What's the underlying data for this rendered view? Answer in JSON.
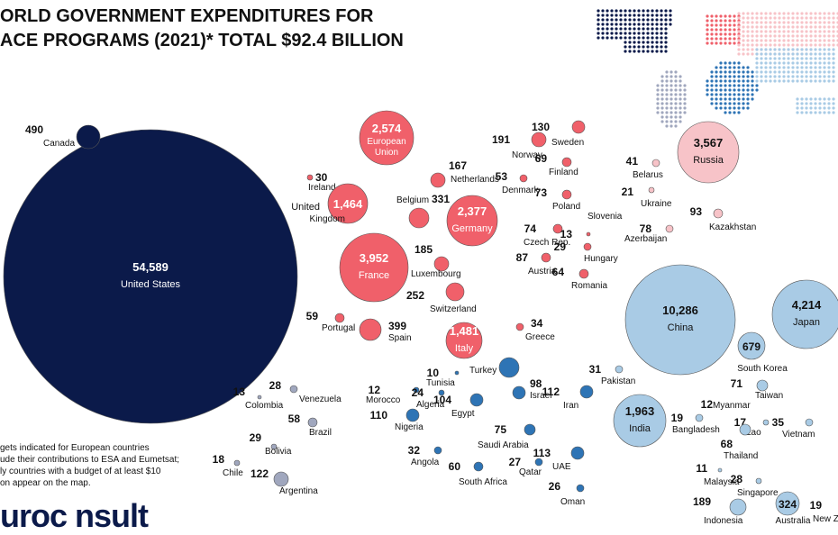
{
  "title_line1": "ORLD GOVERNMENT EXPENDITURES FOR",
  "title_line2": "ACE PROGRAMS (2021)* TOTAL $92.4 BILLION",
  "notes": [
    "gets indicated for European countries",
    "ude their contributions to ESA and Eumetsat;",
    "ly countries with a budget of at least  $10",
    "on appear on the map."
  ],
  "logo_text": "uroc nsult",
  "colors": {
    "americas": "#0b1a4a",
    "americas_small": "#a0a7be",
    "europe": "#f0606a",
    "russia": "#f7c3c8",
    "africa_me": "#2e74b5",
    "asia": "#a9cbe5"
  },
  "chart_data": {
    "type": "bubble",
    "title": "ORLD GOVERNMENT EXPENDITURES FOR ACE PROGRAMS (2021)* TOTAL $92.4 BILLION",
    "unit": "$M",
    "points": [
      {
        "name": "United States",
        "value": "54,589",
        "region": "americas"
      },
      {
        "name": "Canada",
        "value": "490",
        "region": "americas"
      },
      {
        "name": "Colombia",
        "value": "13",
        "region": "americas_small"
      },
      {
        "name": "Venezuela",
        "value": "28",
        "region": "americas_small"
      },
      {
        "name": "Brazil",
        "value": "58",
        "region": "americas_small"
      },
      {
        "name": "Bolivia",
        "value": "29",
        "region": "americas_small"
      },
      {
        "name": "Chile",
        "value": "18",
        "region": "americas_small"
      },
      {
        "name": "Argentina",
        "value": "122",
        "region": "americas_small"
      },
      {
        "name": "European Union",
        "value": "2,574",
        "region": "europe"
      },
      {
        "name": "Ireland",
        "value": "30",
        "region": "europe"
      },
      {
        "name": "United Kingdom",
        "value": "1,464",
        "region": "europe"
      },
      {
        "name": "Netherlands",
        "value": "167",
        "region": "europe"
      },
      {
        "name": "Belgium",
        "value": "331",
        "region": "europe"
      },
      {
        "name": "Germany",
        "value": "2,377",
        "region": "europe"
      },
      {
        "name": "France",
        "value": "3,952",
        "region": "europe"
      },
      {
        "name": "Luxembourg",
        "value": "185",
        "region": "europe"
      },
      {
        "name": "Switzerland",
        "value": "252",
        "region": "europe"
      },
      {
        "name": "Portugal",
        "value": "59",
        "region": "europe"
      },
      {
        "name": "Spain",
        "value": "399",
        "region": "europe"
      },
      {
        "name": "Italy",
        "value": "1,481",
        "region": "europe"
      },
      {
        "name": "Greece",
        "value": "34",
        "region": "europe"
      },
      {
        "name": "Norway",
        "value": "191",
        "region": "europe"
      },
      {
        "name": "Sweden",
        "value": "130",
        "region": "europe"
      },
      {
        "name": "Finland",
        "value": "69",
        "region": "europe"
      },
      {
        "name": "Denmark",
        "value": "53",
        "region": "europe"
      },
      {
        "name": "Poland",
        "value": "73",
        "region": "europe"
      },
      {
        "name": "Slovenia",
        "value": "",
        "region": "europe"
      },
      {
        "name": "Czech Rep.",
        "value": "74",
        "region": "europe"
      },
      {
        "name": "Hungary",
        "value": "29",
        "region": "europe"
      },
      {
        "name": "Austria",
        "value": "87",
        "region": "europe"
      },
      {
        "name": "Romania",
        "value": "64",
        "region": "europe"
      },
      {
        "name": "Slovenia-val",
        "value": "13",
        "region": "europe"
      },
      {
        "name": "Russia",
        "value": "3,567",
        "region": "russia"
      },
      {
        "name": "Belarus",
        "value": "41",
        "region": "russia"
      },
      {
        "name": "Ukraine",
        "value": "21",
        "region": "russia"
      },
      {
        "name": "Azerbaijan",
        "value": "78",
        "region": "russia"
      },
      {
        "name": "Kazakhstan",
        "value": "93",
        "region": "russia"
      },
      {
        "name": "Turkey",
        "value": "",
        "region": "africa_me"
      },
      {
        "name": "Tunisia",
        "value": "10",
        "region": "africa_me"
      },
      {
        "name": "Morocco",
        "value": "12",
        "region": "africa_me"
      },
      {
        "name": "Algeria",
        "value": "24",
        "region": "africa_me"
      },
      {
        "name": "Israel",
        "value": "98",
        "region": "africa_me"
      },
      {
        "name": "Egypt",
        "value": "104",
        "region": "africa_me"
      },
      {
        "name": "Iran",
        "value": "112",
        "region": "africa_me"
      },
      {
        "name": "Nigeria",
        "value": "110",
        "region": "africa_me"
      },
      {
        "name": "Saudi Arabia",
        "value": "75",
        "region": "africa_me"
      },
      {
        "name": "Angola",
        "value": "32",
        "region": "africa_me"
      },
      {
        "name": "South Africa",
        "value": "60",
        "region": "africa_me"
      },
      {
        "name": "Qatar",
        "value": "27",
        "region": "africa_me"
      },
      {
        "name": "UAE",
        "value": "113",
        "region": "africa_me"
      },
      {
        "name": "Oman",
        "value": "26",
        "region": "africa_me"
      },
      {
        "name": "China",
        "value": "10,286",
        "region": "asia"
      },
      {
        "name": "Japan",
        "value": "4,214",
        "region": "asia"
      },
      {
        "name": "South Korea",
        "value": "679",
        "region": "asia"
      },
      {
        "name": "Taiwan",
        "value": "71",
        "region": "asia"
      },
      {
        "name": "Pakistan",
        "value": "31",
        "region": "asia"
      },
      {
        "name": "India",
        "value": "1,963",
        "region": "asia"
      },
      {
        "name": "Bangladesh",
        "value": "19",
        "region": "asia"
      },
      {
        "name": "Myanmar",
        "value": "12",
        "region": "asia"
      },
      {
        "name": "Lao",
        "value": "17",
        "region": "asia"
      },
      {
        "name": "Vietnam",
        "value": "35",
        "region": "asia"
      },
      {
        "name": "Thailand",
        "value": "68",
        "region": "asia"
      },
      {
        "name": "Malaysia",
        "value": "11",
        "region": "asia"
      },
      {
        "name": "Singapore",
        "value": "28",
        "region": "asia"
      },
      {
        "name": "Indonesia",
        "value": "189",
        "region": "asia"
      },
      {
        "name": "Australia",
        "value": "324",
        "region": "asia"
      },
      {
        "name": "New Z",
        "value": "19",
        "region": "asia"
      }
    ]
  }
}
